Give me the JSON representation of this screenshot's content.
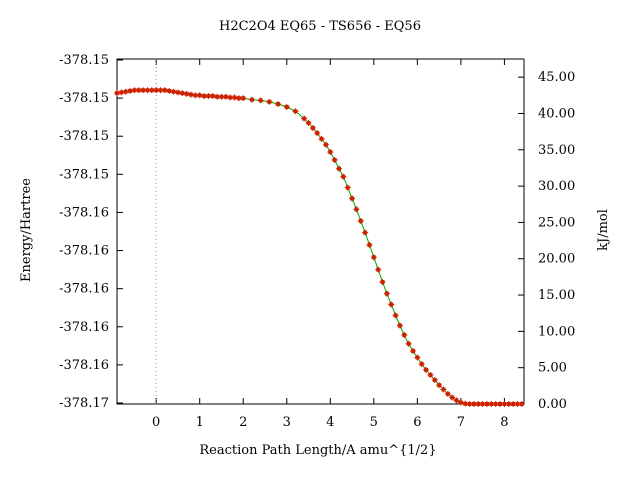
{
  "chart_data": {
    "type": "line",
    "title": "H2C2O4    EQ65 - TS656 - EQ56",
    "xlabel": "Reaction Path Length/A amu^{1/2}",
    "ylabel_left": "Energy/Hartree",
    "ylabel_right": "kJ/mol",
    "xlim": [
      -0.9,
      8.45
    ],
    "ylim_right": [
      0,
      47.5
    ],
    "x_ticks": [
      0,
      1,
      2,
      3,
      4,
      5,
      6,
      7,
      8
    ],
    "left_tick_labels": [
      "-378.15",
      "-378.15",
      "-378.15",
      "-378.15",
      "-378.16",
      "-378.16",
      "-378.16",
      "-378.16",
      "-378.16",
      "-378.17"
    ],
    "right_ticks": [
      0,
      5,
      10,
      15,
      20,
      25,
      30,
      35,
      40,
      45
    ],
    "right_tick_labels": [
      "0.00",
      "5.00",
      "10.00",
      "15.00",
      "20.00",
      "25.00",
      "30.00",
      "35.00",
      "40.00",
      "45.00"
    ],
    "ts_marker_x": 0,
    "grid": false,
    "line_color": "#00aa00",
    "marker_color": "#cc2200",
    "x": [
      -0.9,
      -0.8,
      -0.7,
      -0.6,
      -0.5,
      -0.4,
      -0.3,
      -0.2,
      -0.1,
      0.0,
      0.1,
      0.2,
      0.3,
      0.4,
      0.5,
      0.6,
      0.7,
      0.8,
      0.9,
      1.0,
      1.1,
      1.2,
      1.3,
      1.4,
      1.5,
      1.6,
      1.7,
      1.8,
      1.9,
      2.0,
      2.2,
      2.4,
      2.6,
      2.8,
      3.0,
      3.2,
      3.4,
      3.5,
      3.6,
      3.7,
      3.8,
      3.9,
      4.0,
      4.1,
      4.2,
      4.3,
      4.4,
      4.5,
      4.6,
      4.7,
      4.8,
      4.9,
      5.0,
      5.1,
      5.2,
      5.3,
      5.4,
      5.5,
      5.6,
      5.7,
      5.8,
      5.9,
      6.0,
      6.1,
      6.2,
      6.3,
      6.4,
      6.5,
      6.6,
      6.7,
      6.8,
      6.9,
      7.0,
      7.1,
      7.2,
      7.3,
      7.4,
      7.5,
      7.6,
      7.7,
      7.8,
      7.9,
      8.0,
      8.1,
      8.2,
      8.3,
      8.4
    ],
    "values": [
      42.8,
      42.9,
      43.0,
      43.1,
      43.2,
      43.2,
      43.2,
      43.2,
      43.2,
      43.2,
      43.2,
      43.2,
      43.1,
      43.0,
      42.9,
      42.8,
      42.7,
      42.6,
      42.5,
      42.5,
      42.4,
      42.4,
      42.4,
      42.3,
      42.3,
      42.3,
      42.2,
      42.2,
      42.1,
      42.1,
      41.9,
      41.8,
      41.6,
      41.3,
      40.9,
      40.3,
      39.3,
      38.7,
      38.0,
      37.3,
      36.5,
      35.7,
      34.7,
      33.6,
      32.4,
      31.3,
      29.8,
      28.3,
      26.8,
      25.2,
      23.6,
      21.9,
      20.2,
      18.5,
      16.8,
      15.2,
      13.7,
      12.2,
      10.8,
      9.5,
      8.3,
      7.3,
      6.4,
      5.5,
      4.7,
      4.0,
      3.3,
      2.6,
      2.0,
      1.4,
      0.9,
      0.5,
      0.2,
      0.05,
      0.0,
      0.0,
      0.0,
      0.0,
      0.0,
      0.0,
      0.0,
      0.0,
      0.0,
      0.0,
      0.0,
      0.0,
      0.0
    ]
  }
}
